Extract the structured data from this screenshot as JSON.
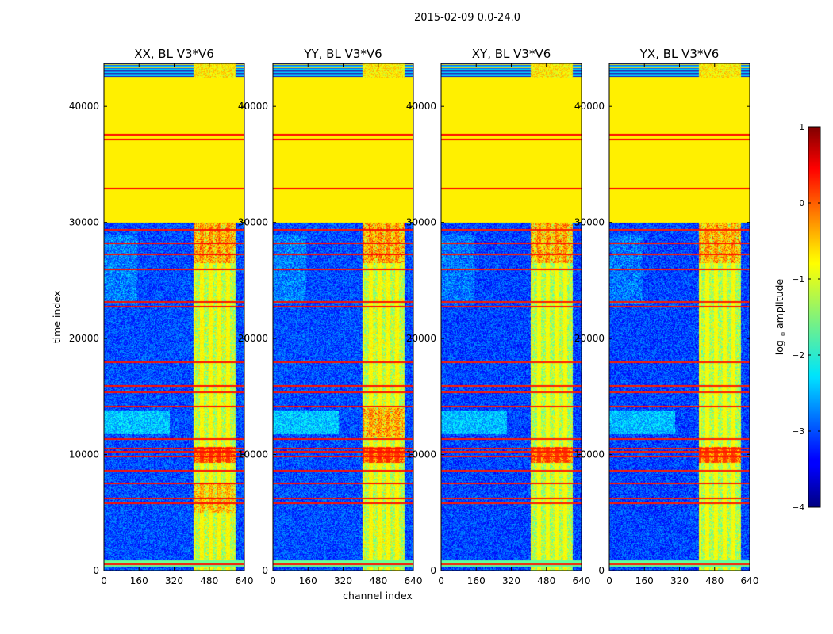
{
  "figure": {
    "suptitle": "2015-02-09 0.0-24.0",
    "xlabel": "channel index",
    "ylabel": "time index"
  },
  "chart_data": {
    "type": "heatmap",
    "x": {
      "label": "channel index",
      "range": [
        0,
        640
      ],
      "ticks": [
        0,
        160,
        320,
        480,
        640
      ],
      "tick_labels": [
        "0",
        "160",
        "320",
        "480",
        "640"
      ]
    },
    "y": {
      "label": "time index",
      "range": [
        0,
        43700
      ],
      "ticks": [
        0,
        10000,
        20000,
        30000,
        40000
      ],
      "tick_labels": [
        "0",
        "10000",
        "20000",
        "30000",
        "40000"
      ]
    },
    "colorbar": {
      "label": "log10 amplitude",
      "label_main": "log",
      "label_sub": "10",
      "label_rest": " amplitude",
      "range": [
        -4,
        1
      ],
      "ticks": [
        1,
        0,
        -1,
        -2,
        -3,
        -4
      ],
      "tick_labels": [
        "1",
        "0",
        "−1",
        "−2",
        "−3",
        "−4"
      ],
      "colormap": "jet"
    },
    "panels": [
      {
        "title": "XX, BL V3*V6",
        "id": "xx"
      },
      {
        "title": "YY, BL V3*V6",
        "id": "yy"
      },
      {
        "title": "XY, BL V3*V6",
        "id": "xy"
      },
      {
        "title": "YX, BL V3*V6",
        "id": "yx"
      }
    ],
    "features": {
      "saturated_block": {
        "time_range": [
          30000,
          42500
        ],
        "level": -0.8
      },
      "top_striped_band": {
        "time_range": [
          42500,
          43700
        ]
      },
      "rfi_channel_band": {
        "channel_range": [
          405,
          600
        ],
        "level_range": [
          -2.0,
          0.5
        ]
      },
      "background_level": -3.0,
      "hot_rows": [
        600,
        5900,
        6300,
        7600,
        8700,
        9900,
        10300,
        10600,
        11400,
        14200,
        15400,
        16000,
        18000,
        22800,
        23200,
        26000,
        27300,
        28300,
        29400,
        33000,
        37200,
        37600
      ]
    }
  }
}
